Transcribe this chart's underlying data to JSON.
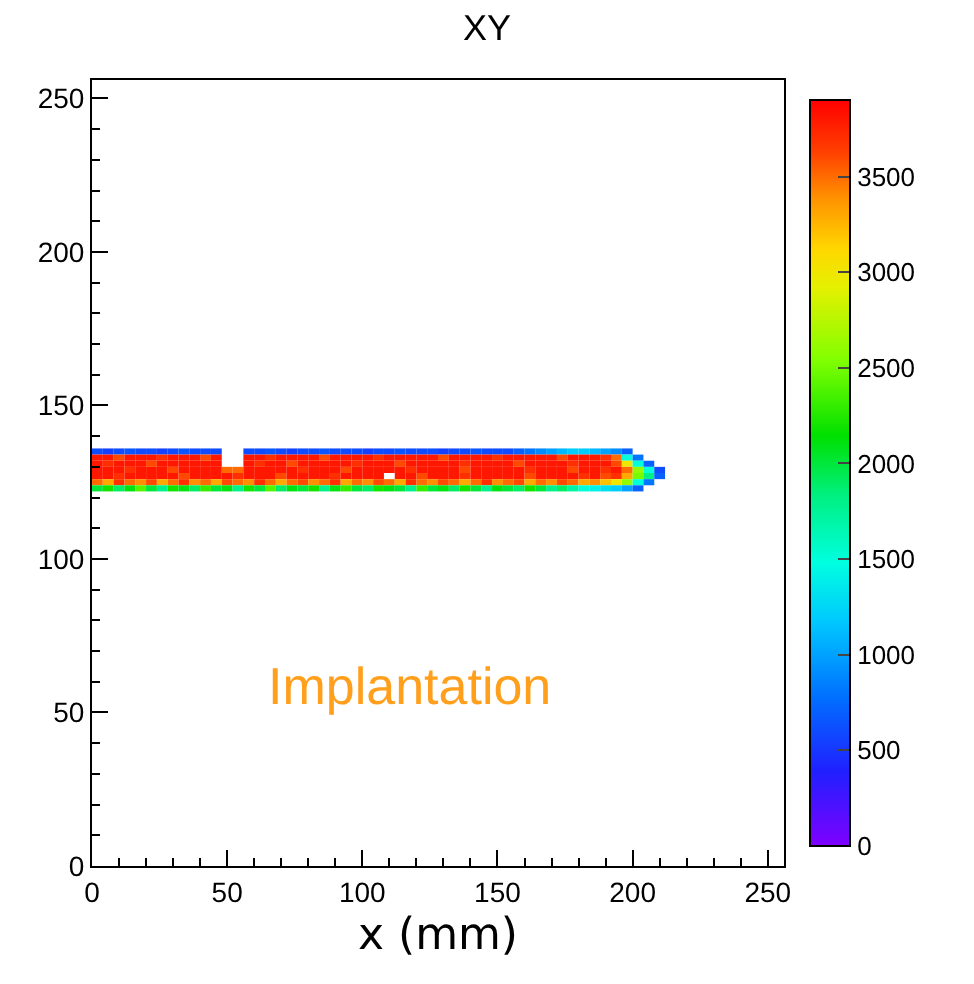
{
  "chart_data": {
    "type": "heatmap",
    "title": "XY",
    "xlabel": "x (mm)",
    "x": [
      2,
      6,
      10,
      14,
      18,
      22,
      26,
      30,
      34,
      38,
      42,
      46,
      50,
      54,
      58,
      62,
      66,
      70,
      74,
      78,
      82,
      86,
      90,
      94,
      98,
      102,
      106,
      110,
      114,
      118,
      122,
      126,
      130,
      134,
      138,
      142,
      146,
      150,
      154,
      158,
      162,
      166,
      170,
      174,
      178,
      182,
      186,
      190,
      194,
      198,
      202,
      206,
      210
    ],
    "y": [
      135,
      133,
      131,
      129,
      127,
      125,
      123
    ],
    "cells": [
      [
        600,
        550,
        600,
        650,
        600,
        600,
        550,
        600,
        650,
        600,
        600,
        600,
        null,
        null,
        600,
        600,
        650,
        600,
        550,
        600,
        600,
        650,
        600,
        600,
        600,
        550,
        600,
        600,
        650,
        600,
        600,
        600,
        550,
        600,
        600,
        650,
        600,
        600,
        600,
        700,
        800,
        900,
        1000,
        1100,
        1200,
        1200,
        1100,
        1000,
        900,
        700,
        null,
        null,
        null
      ],
      [
        3800,
        3800,
        3600,
        3800,
        3800,
        3800,
        3700,
        3800,
        3800,
        3800,
        3600,
        3800,
        null,
        null,
        3800,
        3800,
        3700,
        3800,
        3800,
        3800,
        3800,
        3600,
        3800,
        3800,
        3800,
        3800,
        3700,
        3800,
        3800,
        3800,
        3800,
        3800,
        3600,
        3800,
        3800,
        3800,
        3800,
        3700,
        3800,
        3800,
        3800,
        3800,
        3800,
        3600,
        3800,
        3800,
        3800,
        3700,
        3500,
        1500,
        800,
        null,
        null
      ],
      [
        3800,
        3700,
        3800,
        3800,
        3800,
        3600,
        3800,
        3800,
        3800,
        3800,
        3800,
        3800,
        null,
        null,
        3800,
        3700,
        3800,
        3800,
        3600,
        3800,
        3800,
        3800,
        3800,
        3800,
        3700,
        3800,
        3800,
        3800,
        3600,
        3800,
        3800,
        3800,
        3800,
        3800,
        3700,
        3800,
        3800,
        3800,
        3800,
        3600,
        3800,
        3800,
        3800,
        3800,
        3700,
        3800,
        3800,
        3800,
        3600,
        3000,
        1500,
        700,
        null
      ],
      [
        3800,
        3800,
        3800,
        3700,
        3800,
        3800,
        3800,
        3600,
        3800,
        3800,
        3800,
        3800,
        3500,
        3500,
        3800,
        3800,
        3800,
        3800,
        3800,
        3700,
        3800,
        3800,
        3800,
        3600,
        3800,
        3800,
        3800,
        3800,
        3800,
        3700,
        3800,
        3800,
        3800,
        3800,
        3600,
        3800,
        3800,
        3800,
        3800,
        3800,
        3700,
        3800,
        3800,
        3800,
        3600,
        3800,
        3800,
        3700,
        3800,
        3500,
        2600,
        1500,
        600
      ],
      [
        3800,
        3800,
        3700,
        3800,
        3800,
        3800,
        3800,
        3800,
        3600,
        3800,
        3800,
        3800,
        3800,
        3700,
        3800,
        3800,
        3800,
        3600,
        3800,
        3800,
        3800,
        3800,
        3700,
        3800,
        3800,
        3800,
        3800,
        null,
        3800,
        3800,
        3600,
        3800,
        3800,
        3800,
        3700,
        3800,
        3800,
        3800,
        3800,
        3800,
        3600,
        3800,
        3800,
        3800,
        3800,
        3700,
        3800,
        3600,
        3700,
        3300,
        2500,
        1800,
        700
      ],
      [
        3500,
        3300,
        3700,
        3500,
        3400,
        3600,
        3300,
        3500,
        3700,
        3400,
        3500,
        3300,
        3600,
        3500,
        3400,
        3700,
        3500,
        3300,
        3500,
        3600,
        3400,
        3500,
        3700,
        3300,
        3500,
        3400,
        3600,
        3500,
        3300,
        3700,
        3500,
        3400,
        3600,
        3500,
        3300,
        3500,
        3700,
        3400,
        3500,
        3600,
        3300,
        3500,
        3400,
        3600,
        3500,
        3300,
        3400,
        3200,
        3000,
        2600,
        1500,
        800,
        null
      ],
      [
        2000,
        2200,
        1900,
        2100,
        2400,
        2000,
        1800,
        2200,
        2100,
        1900,
        2300,
        2000,
        2100,
        1800,
        2200,
        2000,
        2400,
        1900,
        2100,
        2000,
        2200,
        1800,
        2100,
        2300,
        2000,
        1900,
        2200,
        2100,
        2000,
        1800,
        2300,
        2000,
        2100,
        1900,
        2200,
        2000,
        1800,
        2100,
        2000,
        1900,
        2200,
        2000,
        1800,
        1900,
        1700,
        1500,
        1400,
        1300,
        1200,
        1000,
        700,
        null,
        null
      ]
    ],
    "clim": [
      0,
      3900
    ],
    "cticks": [
      0,
      500,
      1000,
      1500,
      2000,
      2500,
      3000,
      3500
    ],
    "xlim": [
      0,
      256
    ],
    "ylim": [
      0,
      256
    ],
    "xticks": [
      0,
      50,
      100,
      150,
      200,
      250
    ],
    "yticks": [
      0,
      50,
      100,
      150,
      200,
      250
    ],
    "annotations": [
      "Implantation"
    ]
  }
}
